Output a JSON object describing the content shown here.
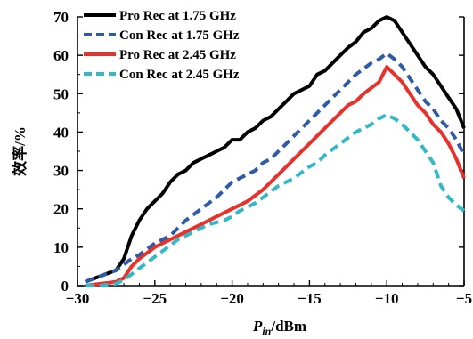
{
  "chart_data": {
    "type": "line",
    "xlabel_main": "P",
    "xlabel_sub": "in",
    "xlabel_unit": "/dBm",
    "ylabel": "效率/%",
    "xlim": [
      -30,
      -5
    ],
    "ylim": [
      0,
      70
    ],
    "xticks": [
      -30,
      -25,
      -20,
      -15,
      -10,
      -5
    ],
    "yticks": [
      0,
      10,
      20,
      30,
      40,
      50,
      60,
      70
    ],
    "xtick_labels": [
      "−30",
      "−25",
      "−20",
      "−15",
      "−10",
      "−5"
    ],
    "ytick_labels": [
      "0",
      "10",
      "20",
      "30",
      "40",
      "50",
      "60",
      "70"
    ],
    "grid": false,
    "legend_position": "top-left",
    "series": [
      {
        "name": "Pro Rec at 1.75 GHz",
        "color": "#000000",
        "dash": "solid",
        "x": [
          -29.5,
          -28.5,
          -27.5,
          -27,
          -26.5,
          -26,
          -25.5,
          -25,
          -24.5,
          -24,
          -23.5,
          -23,
          -22.5,
          -22,
          -21.5,
          -21,
          -20.5,
          -20,
          -19.5,
          -19,
          -18.5,
          -18,
          -17.5,
          -17,
          -16.5,
          -16,
          -15.5,
          -15,
          -14.5,
          -14,
          -13.5,
          -13,
          -12.5,
          -12,
          -11.5,
          -11,
          -10.5,
          -10,
          -9.5,
          -9,
          -8.5,
          -8,
          -7.5,
          -7,
          -6.5,
          -6,
          -5.5,
          -5
        ],
        "y": [
          1,
          2.5,
          4,
          7,
          13,
          17,
          20,
          22,
          24,
          27,
          29,
          30,
          32,
          33,
          34,
          35,
          36,
          38,
          38,
          40,
          41,
          43,
          44,
          46,
          48,
          50,
          51,
          52,
          55,
          56,
          58,
          60,
          62,
          63.5,
          66,
          67,
          69,
          70,
          69,
          66,
          63,
          60,
          57,
          55,
          52,
          49,
          46,
          41
        ]
      },
      {
        "name": "Con Rec at 1.75 GHz",
        "color": "#2e5aa8",
        "dash": "dashed",
        "x": [
          -29.5,
          -28.5,
          -27.5,
          -27,
          -26.5,
          -26,
          -25.5,
          -25,
          -24.5,
          -24,
          -23.5,
          -23,
          -22.5,
          -22,
          -21.5,
          -21,
          -20.5,
          -20,
          -19.5,
          -19,
          -18.5,
          -18,
          -17.5,
          -17,
          -16.5,
          -16,
          -15.5,
          -15,
          -14.5,
          -14,
          -13.5,
          -13,
          -12.5,
          -12,
          -11.5,
          -11,
          -10.5,
          -10,
          -9.5,
          -9,
          -8.5,
          -8,
          -7.5,
          -7,
          -6.5,
          -6,
          -5.5,
          -5
        ],
        "y": [
          1,
          2.5,
          4,
          5.5,
          7,
          8,
          9.5,
          11,
          12,
          13,
          15,
          17,
          18.5,
          20,
          21.5,
          23,
          25,
          27,
          28,
          29,
          30,
          32,
          33,
          35,
          37,
          39,
          41,
          43,
          45,
          47,
          49,
          51,
          53,
          55,
          56.5,
          58,
          59,
          60.5,
          59,
          57,
          54,
          51,
          48,
          46,
          43,
          41,
          38,
          34
        ]
      },
      {
        "name": "Pro Rec at 2.45 GHz",
        "color": "#e8312a",
        "dash": "solid",
        "x": [
          -29.5,
          -28.5,
          -27.5,
          -27,
          -26.5,
          -26,
          -25.5,
          -25,
          -24.5,
          -24,
          -23.5,
          -23,
          -22.5,
          -22,
          -21.5,
          -21,
          -20.5,
          -20,
          -19.5,
          -19,
          -18.5,
          -18,
          -17.5,
          -17,
          -16.5,
          -16,
          -15.5,
          -15,
          -14.5,
          -14,
          -13.5,
          -13,
          -12.5,
          -12,
          -11.5,
          -11,
          -10.5,
          -10,
          -9.5,
          -9,
          -8.5,
          -8,
          -7.5,
          -7,
          -6.5,
          -6,
          -5.5,
          -5
        ],
        "y": [
          0,
          0.5,
          1,
          2,
          5,
          7,
          8.5,
          10,
          11,
          12,
          13,
          14,
          15,
          16,
          17,
          18,
          19,
          20,
          21,
          22,
          23.5,
          25,
          27,
          29,
          31,
          33,
          35,
          37,
          39,
          41,
          43,
          45,
          47,
          48,
          50,
          51.5,
          53,
          57,
          55,
          53,
          50,
          47,
          45,
          42,
          40,
          37,
          33,
          28
        ]
      },
      {
        "name": "Con Rec at 2.45 GHz",
        "color": "#33b8c8",
        "dash": "dashed",
        "x": [
          -29.5,
          -28.5,
          -27.5,
          -27,
          -26.5,
          -26,
          -25.5,
          -25,
          -24.5,
          -24,
          -23.5,
          -23,
          -22.5,
          -22,
          -21.5,
          -21,
          -20.5,
          -20,
          -19.5,
          -19,
          -18.5,
          -18,
          -17.5,
          -17,
          -16.5,
          -16,
          -15.5,
          -15,
          -14.5,
          -14,
          -13.5,
          -13,
          -12.5,
          -12,
          -11.5,
          -11,
          -10.5,
          -10,
          -9.5,
          -9,
          -8.5,
          -8,
          -7.5,
          -7,
          -6.5,
          -6,
          -5.5,
          -5
        ],
        "y": [
          0,
          0,
          0.5,
          1.5,
          3,
          4.5,
          6,
          7.5,
          9,
          10.5,
          12,
          13,
          14,
          15,
          16,
          16.5,
          17,
          18,
          19.5,
          20.5,
          21.5,
          23,
          24.5,
          26,
          27,
          28,
          29.5,
          31,
          32,
          34,
          35.5,
          37,
          38.5,
          40,
          41,
          42,
          43.5,
          44.5,
          43.5,
          42,
          40,
          38,
          35,
          32,
          26,
          23,
          21,
          19.5
        ]
      }
    ]
  }
}
